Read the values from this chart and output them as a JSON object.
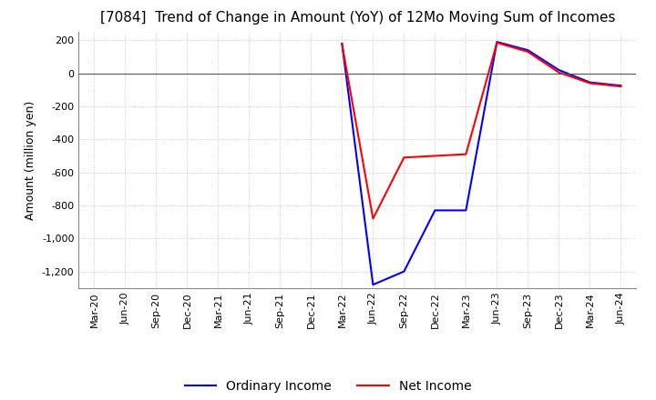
{
  "title": "[7084]  Trend of Change in Amount (YoY) of 12Mo Moving Sum of Incomes",
  "ylabel": "Amount (million yen)",
  "ylim": [
    -1300,
    250
  ],
  "yticks": [
    200,
    0,
    -200,
    -400,
    -600,
    -800,
    -1000,
    -1200
  ],
  "x_labels": [
    "Mar-20",
    "Jun-20",
    "Sep-20",
    "Dec-20",
    "Mar-21",
    "Jun-21",
    "Sep-21",
    "Dec-21",
    "Mar-22",
    "Jun-22",
    "Sep-22",
    "Dec-22",
    "Mar-23",
    "Jun-23",
    "Sep-23",
    "Dec-23",
    "Mar-24",
    "Jun-24"
  ],
  "ordinary_income": [
    null,
    null,
    null,
    null,
    null,
    null,
    null,
    null,
    180,
    -1280,
    -1200,
    -830,
    -830,
    190,
    140,
    20,
    -55,
    -75
  ],
  "net_income": [
    null,
    null,
    null,
    null,
    null,
    null,
    null,
    null,
    175,
    -880,
    -510,
    -500,
    -490,
    185,
    130,
    5,
    -60,
    -80
  ],
  "ordinary_color": "#0000ff",
  "net_color": "#ff0000",
  "grid_color": "#bbbbbb",
  "zero_line_color": "#555555",
  "background_color": "#ffffff",
  "title_fontsize": 11,
  "axis_fontsize": 9,
  "legend_fontsize": 10
}
